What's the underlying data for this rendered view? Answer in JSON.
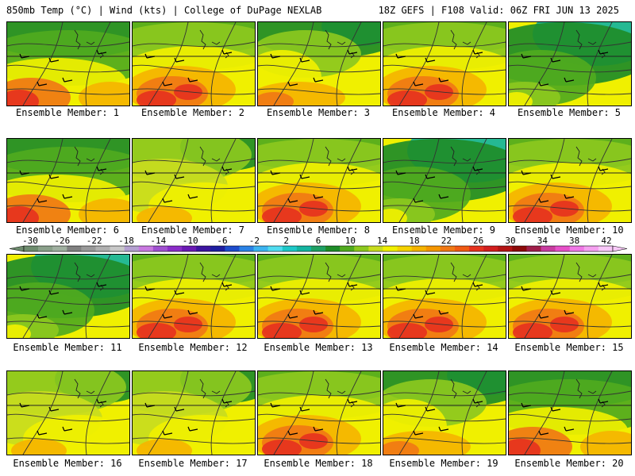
{
  "header": {
    "left_title": "850mb Temp (°C) | Wind (kts) | College of DuPage NEXLAB",
    "right_title": "18Z GEFS | F108 Valid: 06Z FRI JUN 13 2025"
  },
  "panels": [
    {
      "label": "Ensemble Member: 1",
      "scheme": 0
    },
    {
      "label": "Ensemble Member: 2",
      "scheme": 1
    },
    {
      "label": "Ensemble Member: 3",
      "scheme": 2
    },
    {
      "label": "Ensemble Member: 4",
      "scheme": 1
    },
    {
      "label": "Ensemble Member: 5",
      "scheme": 3
    },
    {
      "label": "Ensemble Member: 6",
      "scheme": 0
    },
    {
      "label": "Ensemble Member: 7",
      "scheme": 4
    },
    {
      "label": "Ensemble Member: 8",
      "scheme": 1
    },
    {
      "label": "Ensemble Member: 9",
      "scheme": 3
    },
    {
      "label": "Ensemble Member: 10",
      "scheme": 1
    },
    {
      "label": "Ensemble Member: 11",
      "scheme": 3
    },
    {
      "label": "Ensemble Member: 12",
      "scheme": 1
    },
    {
      "label": "Ensemble Member: 13",
      "scheme": 1
    },
    {
      "label": "Ensemble Member: 14",
      "scheme": 1
    },
    {
      "label": "Ensemble Member: 15",
      "scheme": 1
    },
    {
      "label": "Ensemble Member: 16",
      "scheme": 4
    },
    {
      "label": "Ensemble Member: 17",
      "scheme": 4
    },
    {
      "label": "Ensemble Member: 18",
      "scheme": 1
    },
    {
      "label": "Ensemble Member: 19",
      "scheme": 2
    },
    {
      "label": "Ensemble Member: 20",
      "scheme": 0
    }
  ],
  "colorbar": {
    "unit": "°C",
    "tick_labels": [
      "-30",
      "-26",
      "-22",
      "-18",
      "-14",
      "-10",
      "-6",
      "-2",
      "2",
      "6",
      "10",
      "14",
      "18",
      "22",
      "26",
      "30",
      "34",
      "38",
      "42"
    ],
    "colors": [
      "#6e8c6e",
      "#8aa08a",
      "#a0b0a0",
      "#808080",
      "#999999",
      "#b0b0b0",
      "#c8c8c8",
      "#b4a0d0",
      "#c878e0",
      "#a050d0",
      "#8a2cc8",
      "#6a1ab4",
      "#3c14a0",
      "#1e1ea0",
      "#1e4ccc",
      "#2a82e6",
      "#3cb4f0",
      "#50dcf0",
      "#1ec8c8",
      "#14b4a0",
      "#1ea064",
      "#1e8c28",
      "#50aa1e",
      "#8cc81e",
      "#c8dc1e",
      "#f0f000",
      "#f5d200",
      "#f5b400",
      "#f59600",
      "#f07814",
      "#f05a14",
      "#e6321e",
      "#d21e1e",
      "#b41414",
      "#8c0a0a",
      "#a01e4a",
      "#c83ca0",
      "#e650c8",
      "#f078e6",
      "#f5a0f0",
      "#f8c8f8"
    ]
  },
  "legend_scheme_colors": {
    "dark_green": "#1e8c28",
    "green": "#50aa1e",
    "light_green": "#8cc81e",
    "yellow_green": "#c8dc1e",
    "yellow": "#f0f000",
    "light_orange": "#f5b400",
    "orange": "#f07814",
    "red": "#e6321e",
    "teal": "#14b4a0"
  }
}
